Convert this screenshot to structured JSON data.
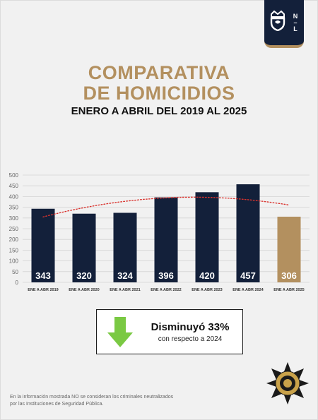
{
  "branding": {
    "logo_letters": [
      "N",
      "L"
    ]
  },
  "header": {
    "title_line1": "COMPARATIVA",
    "title_line2": "DE HOMICIDIOS",
    "subtitle": "ENERO A ABRIL DEL 2019 AL 2025"
  },
  "result": {
    "main": "Disminuyó 33%",
    "sub": "con respecto a 2024",
    "icon": "down-arrow-icon"
  },
  "footnote": {
    "line1": "En la información mostrada NO se consideran los criminales neutralizados",
    "line2": "por las Instituciones de Seguridad Pública."
  },
  "colors": {
    "gold": "#b3905f",
    "navy": "#13203a",
    "trend": "#d9332e",
    "arrow": "#7ac943"
  },
  "chart_data": {
    "type": "bar",
    "categories": [
      "ENE A ABR 2019",
      "ENE A ABR 2020",
      "ENE A ABR 2021",
      "ENE A ABR 2022",
      "ENE A ABR 2023",
      "ENE A ABR 2024",
      "ENE A ABR 2025"
    ],
    "values": [
      343,
      320,
      324,
      396,
      420,
      457,
      306
    ],
    "highlight_index": 6,
    "ylim": [
      0,
      500
    ],
    "yticks": [
      0,
      50,
      100,
      150,
      200,
      250,
      300,
      350,
      400,
      450,
      500
    ],
    "grid": true,
    "trendline": "polynomial",
    "data_labels": true
  }
}
